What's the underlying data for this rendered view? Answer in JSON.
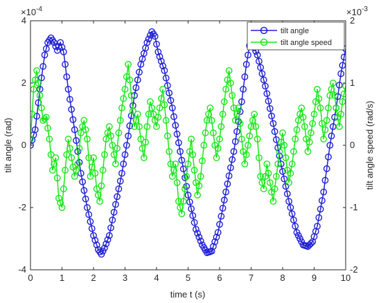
{
  "chart_data": {
    "type": "line",
    "xlabel": "time t (s)",
    "ylabel_left": "tilt angle (rad)",
    "ylabel_right": "tilt angle speed (rad/s)",
    "xlim": [
      0,
      10
    ],
    "ylim_left": [
      -4,
      4
    ],
    "ylim_right": [
      -2,
      2
    ],
    "x_ticks": [
      "0",
      "1",
      "2",
      "3",
      "4",
      "5",
      "6",
      "7",
      "8",
      "9",
      "10"
    ],
    "y_left_ticks": [
      "4",
      "2",
      "0",
      "-2",
      "-4"
    ],
    "y_right_ticks": [
      "2",
      "1",
      "0",
      "-1",
      "-2"
    ],
    "y_left_exponent": "×10",
    "y_left_exponent_power": "-4",
    "y_right_exponent": "×10",
    "y_right_exponent_power": "-3",
    "legend_position": "top-right",
    "colors": {
      "tilt_angle": "#1f1fd6",
      "tilt_angle_speed": "#19e619"
    },
    "series": [
      {
        "name": "tilt angle",
        "axis": "left",
        "x": [
          0,
          0.15,
          0.3,
          0.45,
          0.55,
          0.65,
          0.75,
          0.85,
          0.95,
          1.05,
          1.2,
          1.4,
          1.6,
          1.8,
          2.0,
          2.15,
          2.25,
          2.35,
          2.5,
          2.7,
          2.9,
          3.1,
          3.3,
          3.5,
          3.7,
          3.85,
          3.95,
          4.05,
          4.25,
          4.5,
          4.75,
          5.0,
          5.25,
          5.45,
          5.6,
          5.75,
          5.95,
          6.2,
          6.45,
          6.7,
          6.85,
          6.95,
          7.05,
          7.2,
          7.45,
          7.7,
          7.95,
          8.2,
          8.45,
          8.65,
          8.8,
          8.95,
          9.1,
          9.3,
          9.5,
          9.7,
          9.85,
          10.0
        ],
        "values": [
          0,
          0.5,
          1.8,
          2.9,
          3.3,
          3.45,
          3.3,
          3.05,
          3.3,
          3.0,
          1.8,
          0.5,
          -0.9,
          -2.0,
          -2.9,
          -3.35,
          -3.5,
          -3.3,
          -2.9,
          -1.9,
          -0.9,
          0.3,
          1.6,
          2.6,
          3.3,
          3.65,
          3.5,
          3.0,
          2.4,
          1.2,
          -0.2,
          -1.6,
          -2.7,
          -3.2,
          -3.45,
          -3.4,
          -2.8,
          -1.5,
          -0.2,
          1.4,
          2.6,
          3.2,
          3.25,
          2.9,
          1.9,
          0.7,
          -0.6,
          -1.8,
          -2.8,
          -3.2,
          -3.25,
          -3.1,
          -2.6,
          -1.5,
          0.0,
          1.2,
          2.3,
          3.1
        ]
      },
      {
        "name": "tilt angle speed",
        "axis": "right",
        "x": [
          0,
          0.1,
          0.2,
          0.3,
          0.4,
          0.5,
          0.6,
          0.7,
          0.8,
          0.9,
          1.0,
          1.1,
          1.2,
          1.3,
          1.4,
          1.5,
          1.6,
          1.7,
          1.8,
          1.9,
          2.0,
          2.1,
          2.2,
          2.3,
          2.4,
          2.5,
          2.6,
          2.7,
          2.8,
          2.9,
          3.0,
          3.1,
          3.2,
          3.3,
          3.4,
          3.5,
          3.6,
          3.7,
          3.8,
          3.9,
          4.0,
          4.1,
          4.2,
          4.3,
          4.4,
          4.5,
          4.6,
          4.7,
          4.8,
          4.9,
          5.0,
          5.1,
          5.2,
          5.3,
          5.4,
          5.5,
          5.6,
          5.7,
          5.8,
          5.9,
          6.0,
          6.1,
          6.2,
          6.3,
          6.4,
          6.5,
          6.6,
          6.7,
          6.8,
          6.9,
          7.0,
          7.1,
          7.2,
          7.3,
          7.4,
          7.5,
          7.6,
          7.7,
          7.8,
          7.9,
          8.0,
          8.1,
          8.2,
          8.3,
          8.4,
          8.5,
          8.6,
          8.7,
          8.8,
          8.9,
          9.0,
          9.1,
          9.2,
          9.3,
          9.4,
          9.5,
          9.6,
          9.7,
          9.8,
          9.9,
          10.0
        ],
        "values": [
          0.1,
          0.9,
          1.2,
          0.8,
          0.4,
          0.45,
          0.1,
          -0.4,
          -0.2,
          -0.85,
          -1.0,
          -0.4,
          0.1,
          -0.2,
          -0.5,
          -0.3,
          0.2,
          0.4,
          0.1,
          -0.5,
          -0.2,
          -0.7,
          -0.9,
          -0.4,
          0.1,
          0.3,
          0.0,
          -0.3,
          0.2,
          0.6,
          0.9,
          1.3,
          0.8,
          0.3,
          0.5,
          0.1,
          -0.2,
          0.3,
          0.7,
          0.5,
          0.3,
          0.6,
          0.9,
          0.4,
          -0.1,
          -0.5,
          -0.3,
          -0.9,
          -1.1,
          -0.7,
          -0.3,
          0.1,
          -0.4,
          -0.8,
          -0.5,
          0.0,
          0.4,
          0.6,
          0.2,
          -0.2,
          0.1,
          0.5,
          0.9,
          1.2,
          0.8,
          0.4,
          0.6,
          0.1,
          -0.3,
          0.0,
          0.3,
          0.5,
          0.1,
          -0.5,
          -0.7,
          -0.3,
          -0.6,
          -0.9,
          -0.5,
          -0.1,
          0.2,
          -0.2,
          -0.6,
          -0.3,
          0.1,
          0.4,
          0.6,
          0.3,
          -0.1,
          0.2,
          0.5,
          0.9,
          0.6,
          0.1,
          0.4,
          0.8,
          1.0,
          0.6,
          0.3,
          0.7,
          0.95
        ]
      }
    ]
  }
}
